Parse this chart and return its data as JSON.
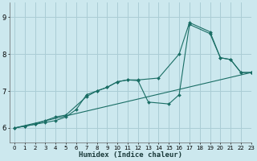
{
  "xlabel": "Humidex (Indice chaleur)",
  "background_color": "#cce8ee",
  "grid_color": "#aacdd5",
  "line_color": "#1a6e65",
  "xlim": [
    -0.5,
    23
  ],
  "ylim": [
    5.6,
    9.4
  ],
  "yticks": [
    6,
    7,
    8,
    9
  ],
  "xticks": [
    0,
    1,
    2,
    3,
    4,
    5,
    6,
    7,
    8,
    9,
    10,
    11,
    12,
    13,
    14,
    15,
    16,
    17,
    18,
    19,
    20,
    21,
    22,
    23
  ],
  "series": [
    {
      "x": [
        0,
        1,
        2,
        3,
        4,
        5,
        7,
        8,
        9,
        10,
        11,
        12,
        13,
        15,
        16,
        17,
        19,
        20,
        21,
        22,
        23
      ],
      "y": [
        6.0,
        6.05,
        6.1,
        6.2,
        6.3,
        6.35,
        6.85,
        7.0,
        7.1,
        7.25,
        7.3,
        7.28,
        6.7,
        6.65,
        6.9,
        8.8,
        8.55,
        7.9,
        7.85,
        7.5,
        7.5
      ]
    },
    {
      "x": [
        0,
        1,
        2,
        3,
        4,
        5,
        6,
        7,
        8,
        9,
        10,
        11,
        12,
        14,
        16,
        17,
        19,
        20,
        21,
        22,
        23
      ],
      "y": [
        6.0,
        6.05,
        6.1,
        6.15,
        6.2,
        6.3,
        6.5,
        6.9,
        7.0,
        7.1,
        7.25,
        7.3,
        7.3,
        7.35,
        8.0,
        8.85,
        8.6,
        7.9,
        7.85,
        7.5,
        7.5
      ]
    },
    {
      "x": [
        0,
        23
      ],
      "y": [
        6.0,
        7.5
      ]
    }
  ]
}
